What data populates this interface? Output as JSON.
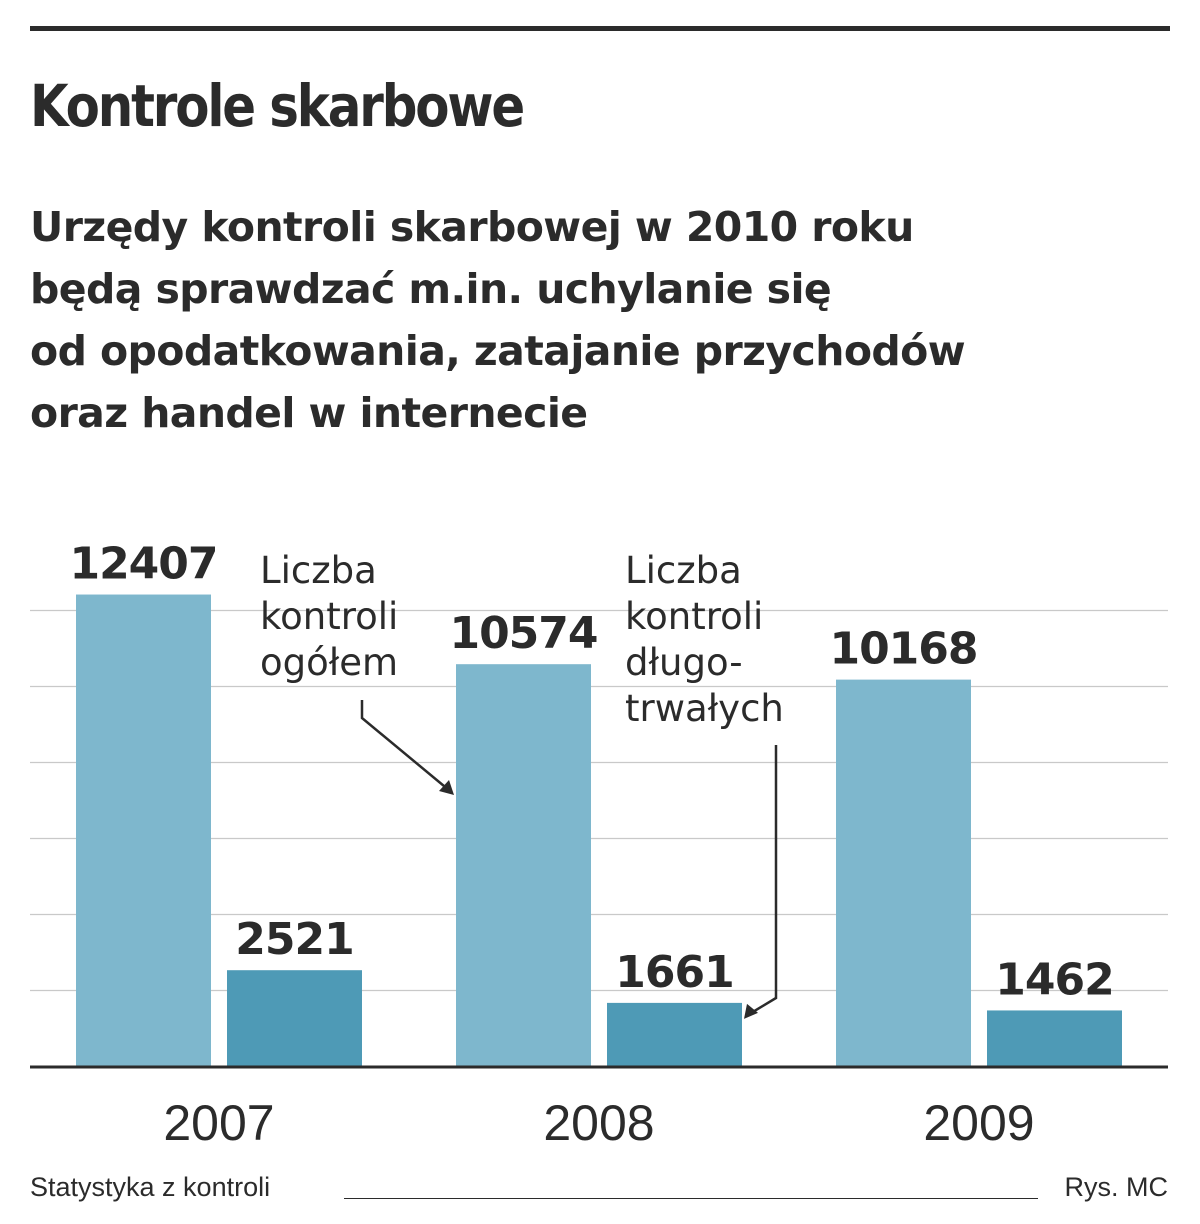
{
  "header": {
    "title": "Kontrole skarbowe",
    "subtitle": "Urzędy kontroli skarbowej w 2010 roku\nbędą sprawdzać m.in. uchylanie się\nod opodatkowania, zatajanie przychodów\noraz handel w internecie"
  },
  "chart_data": {
    "type": "bar",
    "categories": [
      "2007",
      "2008",
      "2009"
    ],
    "series": [
      {
        "name": "Liczba kontroli ogółem",
        "values": [
          12407,
          10574,
          10168
        ],
        "color": "#7eb7cd"
      },
      {
        "name": "Liczba kontroli długotrwałych",
        "values": [
          2521,
          1661,
          1462
        ],
        "color": "#4e9ab6"
      }
    ],
    "ylim": [
      0,
      12500
    ],
    "grid": true,
    "annotations": [
      {
        "text": [
          "Liczba",
          "kontroli",
          "ogółem"
        ],
        "series": 0
      },
      {
        "text": [
          "Liczba",
          "kontroli",
          "długo-",
          "trwałych"
        ],
        "series": 1
      }
    ]
  },
  "footer": {
    "source": "Statystyka z kontroli",
    "credit": "Rys. MC"
  }
}
